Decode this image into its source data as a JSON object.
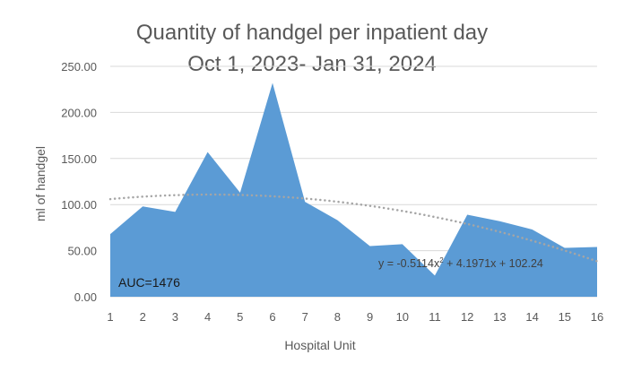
{
  "chart_data": {
    "type": "area",
    "title_line1": "Quantity of handgel per inpatient day",
    "title_line2": "Oct 1, 2023- Jan 31, 2024",
    "xlabel": "Hospital Unit",
    "ylabel": "ml of handgel",
    "categories": [
      "1",
      "2",
      "3",
      "4",
      "5",
      "6",
      "7",
      "8",
      "9",
      "10",
      "11",
      "12",
      "13",
      "14",
      "15",
      "16"
    ],
    "values": [
      68,
      98,
      92,
      157,
      113,
      232,
      103,
      83,
      55,
      57,
      23,
      89,
      82,
      73,
      53,
      54
    ],
    "ylim": [
      0,
      250
    ],
    "yticks": [
      "0.00",
      "50.00",
      "100.00",
      "150.00",
      "200.00",
      "250.00"
    ],
    "yticks_values": [
      0,
      50,
      100,
      150,
      200,
      250
    ],
    "grid": true,
    "legend": "none",
    "trendline": {
      "type": "polynomial-2",
      "a": -0.5114,
      "b": 4.1971,
      "c": 102.24,
      "equation_prefix": "y = -0.5114x",
      "equation_exp": "2",
      "equation_suffix": " + 4.1971x + 102.24"
    },
    "annotation": "AUC=1476",
    "colors": {
      "area": "#5B9BD5",
      "trend": "#A5A5A5",
      "grid": "#D9D9D9",
      "text": "#595959",
      "equation": "#404040"
    }
  }
}
